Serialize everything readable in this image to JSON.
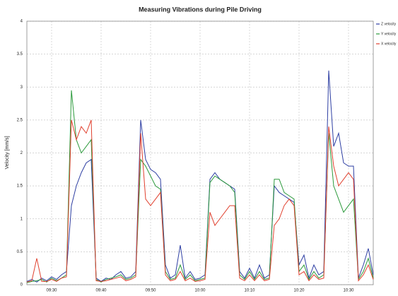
{
  "chart_data": {
    "type": "line",
    "title": "Measuring Vibrations during Pile Driving",
    "y_label": "Velocity [mm/s]",
    "x": [
      "09:25",
      "09:26",
      "09:27",
      "09:28",
      "09:29",
      "09:30",
      "09:31",
      "09:32",
      "09:33",
      "09:34",
      "09:35",
      "09:36",
      "09:37",
      "09:38",
      "09:39",
      "09:40",
      "09:41",
      "09:42",
      "09:43",
      "09:44",
      "09:45",
      "09:46",
      "09:47",
      "09:48",
      "09:49",
      "09:50",
      "09:51",
      "09:52",
      "09:53",
      "09:54",
      "09:55",
      "09:56",
      "09:57",
      "09:58",
      "09:59",
      "10:00",
      "10:01",
      "10:02",
      "10:03",
      "10:04",
      "10:05",
      "10:06",
      "10:07",
      "10:08",
      "10:09",
      "10:10",
      "10:11",
      "10:12",
      "10:13",
      "10:14",
      "10:15",
      "10:16",
      "10:17",
      "10:18",
      "10:19",
      "10:20",
      "10:21",
      "10:22",
      "10:23",
      "10:24",
      "10:25",
      "10:26",
      "10:27",
      "10:28",
      "10:29",
      "10:30",
      "10:31",
      "10:32",
      "10:33",
      "10:34",
      "10:35"
    ],
    "series": [
      {
        "name": "Z velocity",
        "color": "#2e3fa3",
        "values": [
          0.05,
          0.08,
          0.04,
          0.1,
          0.06,
          0.12,
          0.08,
          0.15,
          0.2,
          1.2,
          1.5,
          1.7,
          1.85,
          1.9,
          0.1,
          0.05,
          0.1,
          0.08,
          0.15,
          0.2,
          0.1,
          0.12,
          0.2,
          2.5,
          1.9,
          1.75,
          1.7,
          1.6,
          0.3,
          0.1,
          0.15,
          0.6,
          0.1,
          0.2,
          0.08,
          0.1,
          0.15,
          1.6,
          1.7,
          1.6,
          1.55,
          1.5,
          1.45,
          0.2,
          0.1,
          0.25,
          0.1,
          0.3,
          0.1,
          0.15,
          1.5,
          1.4,
          1.35,
          1.3,
          1.25,
          0.3,
          0.45,
          0.1,
          0.3,
          0.15,
          0.2,
          3.25,
          2.1,
          2.3,
          1.85,
          1.8,
          1.8,
          0.1,
          0.3,
          0.55,
          0.15
        ]
      },
      {
        "name": "Y velocity",
        "color": "#2c9a3c",
        "values": [
          0.03,
          0.05,
          0.06,
          0.08,
          0.04,
          0.1,
          0.06,
          0.1,
          0.15,
          2.95,
          2.2,
          2.0,
          2.1,
          2.2,
          0.08,
          0.04,
          0.08,
          0.1,
          0.12,
          0.15,
          0.08,
          0.1,
          0.15,
          1.9,
          1.8,
          1.65,
          1.5,
          1.45,
          0.2,
          0.08,
          0.1,
          0.3,
          0.08,
          0.15,
          0.06,
          0.08,
          0.1,
          1.55,
          1.65,
          1.6,
          1.55,
          1.5,
          1.4,
          0.15,
          0.08,
          0.2,
          0.08,
          0.2,
          0.08,
          0.1,
          1.6,
          1.6,
          1.4,
          1.35,
          1.3,
          0.2,
          0.3,
          0.08,
          0.2,
          0.1,
          0.15,
          2.3,
          1.5,
          1.3,
          1.1,
          1.2,
          1.3,
          0.08,
          0.2,
          0.4,
          0.1
        ]
      },
      {
        "name": "X velocity",
        "color": "#e0402e",
        "values": [
          0.04,
          0.06,
          0.4,
          0.05,
          0.05,
          0.08,
          0.05,
          0.1,
          0.12,
          2.5,
          2.2,
          2.4,
          2.3,
          2.5,
          0.06,
          0.05,
          0.06,
          0.08,
          0.1,
          0.12,
          0.06,
          0.08,
          0.12,
          2.3,
          1.3,
          1.2,
          1.3,
          1.4,
          0.15,
          0.06,
          0.08,
          0.2,
          0.06,
          0.1,
          0.05,
          0.06,
          0.08,
          1.1,
          0.9,
          1.0,
          1.1,
          1.2,
          1.2,
          0.1,
          0.06,
          0.15,
          0.06,
          0.15,
          0.06,
          0.08,
          0.9,
          1.0,
          1.2,
          1.3,
          1.2,
          0.15,
          0.2,
          0.06,
          0.15,
          0.08,
          0.1,
          2.4,
          1.8,
          1.5,
          1.6,
          1.7,
          1.6,
          0.06,
          0.15,
          0.3,
          0.08
        ]
      }
    ],
    "xlim": [
      "09:25",
      "10:35"
    ],
    "xticks": [
      "09:30",
      "09:40",
      "09:50",
      "10:00",
      "10:10",
      "10:20",
      "10:30"
    ],
    "ylim": [
      0,
      4
    ],
    "yticks": [
      0,
      0.5,
      1,
      1.5,
      2,
      2.5,
      3,
      3.5,
      4
    ],
    "grid": true,
    "legend": "top-right"
  }
}
